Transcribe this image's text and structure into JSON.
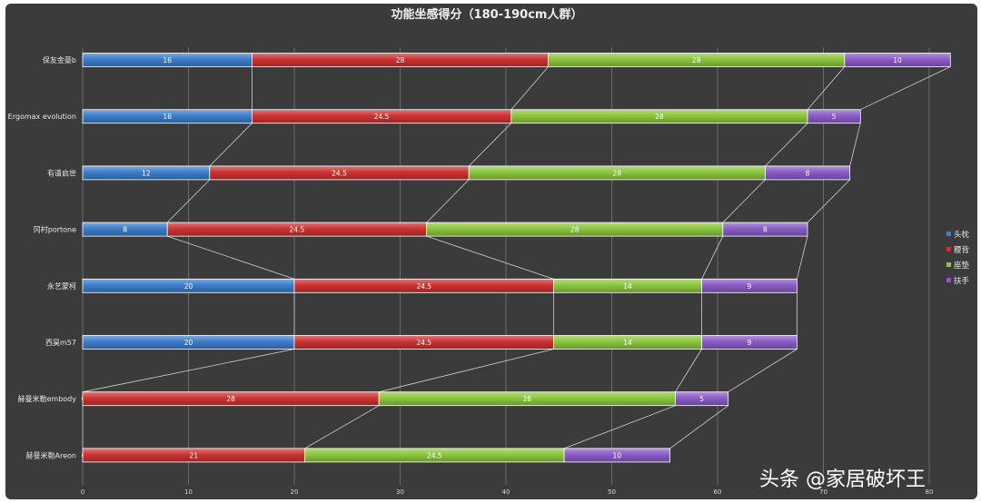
{
  "chart_data": {
    "type": "bar",
    "orientation": "horizontal",
    "stacked": true,
    "title": "功能坐感得分（180-190cm人群）",
    "categories": [
      "保友金豪b",
      "Ergomax evolution",
      "有谱启世",
      "冈村portone",
      "永艺蒙柯",
      "西昊m57",
      "赫曼米勒embody",
      "赫曼米勒Areon"
    ],
    "series": [
      {
        "name": "头枕",
        "color": "#3d7dca",
        "values": [
          16,
          16,
          12,
          8,
          20,
          20,
          0,
          0
        ]
      },
      {
        "name": "腰背",
        "color": "#cc3333",
        "values": [
          28,
          24.5,
          24.5,
          24.5,
          24.5,
          24.5,
          28,
          21
        ]
      },
      {
        "name": "座垫",
        "color": "#8cc63f",
        "values": [
          28,
          28,
          28,
          28,
          14,
          14,
          28,
          24.5
        ]
      },
      {
        "name": "扶手",
        "color": "#8a5cc6",
        "values": [
          10,
          5,
          8,
          8,
          9,
          9,
          5,
          10
        ]
      }
    ],
    "xlim": [
      0,
      80
    ],
    "xticks": [
      "0",
      "10",
      "20",
      "30",
      "40",
      "50",
      "60",
      "70",
      "80"
    ],
    "grid": true,
    "series_lines": true,
    "legend_position": "right"
  },
  "watermark": "头条 @家居破坏王"
}
